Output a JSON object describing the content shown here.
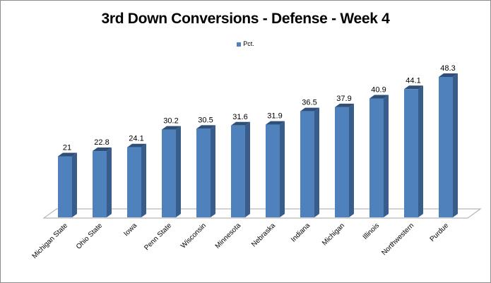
{
  "chart_data": {
    "type": "bar",
    "title": "3rd Down Conversions - Defense - Week 4",
    "xlabel": "",
    "ylabel": "",
    "legend": {
      "position": "top",
      "entries": [
        "Pct."
      ]
    },
    "grid": false,
    "ylim": [
      0,
      50
    ],
    "categories": [
      "Michigan State",
      "Ohio State",
      "Iowa",
      "Penn State",
      "Wisconsin",
      "Minnesota",
      "Nebraska",
      "Indiana",
      "Michigan",
      "Illinois",
      "Northwestern",
      "Purdue"
    ],
    "series": [
      {
        "name": "Pct.",
        "values": [
          21,
          22.8,
          24.1,
          30.2,
          30.5,
          31.6,
          31.9,
          36.5,
          37.9,
          40.9,
          44.1,
          48.3
        ],
        "color": "#4f81bd"
      }
    ],
    "data_labels": [
      "21",
      "22.8",
      "24.1",
      "30.2",
      "30.5",
      "31.6",
      "31.9",
      "36.5",
      "37.9",
      "40.9",
      "44.1",
      "48.3"
    ],
    "style": "3d-column"
  },
  "colors": {
    "bar_front": "#4f81bd",
    "bar_side": "#385d8a",
    "bar_top": "#2f4f77"
  }
}
